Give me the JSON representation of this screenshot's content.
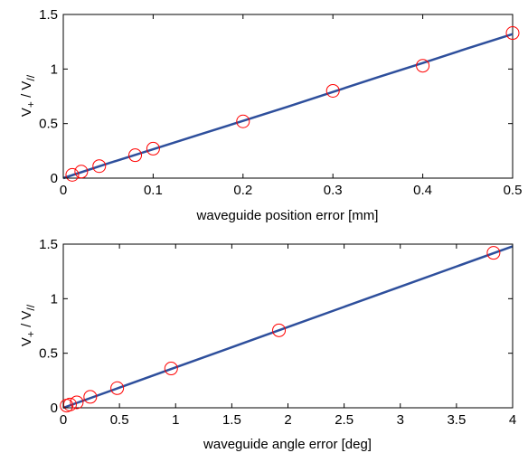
{
  "chart_data": [
    {
      "type": "line",
      "xlabel": "waveguide position error [mm]",
      "ylabel": {
        "base": "V",
        "sub1": "+",
        "sep": " / ",
        "base2": "V",
        "sub2": "//"
      },
      "xlim": [
        0,
        0.5
      ],
      "ylim": [
        0,
        1.5
      ],
      "xticks": [
        0,
        0.1,
        0.2,
        0.3,
        0.4,
        0.5
      ],
      "xtick_labels": [
        "0",
        "0.1",
        "0.2",
        "0.3",
        "0.4",
        "0.5"
      ],
      "yticks": [
        0,
        0.5,
        1,
        1.5
      ],
      "ytick_labels": [
        "0",
        "0.5",
        "1",
        "1.5"
      ],
      "grid": false,
      "series": [
        {
          "kind": "line",
          "color": "#2e4f9c",
          "x": [
            0,
            0.05,
            0.1,
            0.15,
            0.2,
            0.25,
            0.3,
            0.35,
            0.4,
            0.45,
            0.5
          ],
          "y": [
            0,
            0.135,
            0.265,
            0.395,
            0.525,
            0.655,
            0.79,
            0.925,
            1.055,
            1.19,
            1.32
          ]
        },
        {
          "kind": "scatter",
          "marker": "open-circle",
          "color": "#ff0000",
          "x": [
            0.01,
            0.02,
            0.04,
            0.08,
            0.1,
            0.2,
            0.3,
            0.4,
            0.5
          ],
          "y": [
            0.03,
            0.06,
            0.11,
            0.21,
            0.27,
            0.52,
            0.8,
            1.03,
            1.33
          ]
        }
      ]
    },
    {
      "type": "line",
      "xlabel": "waveguide angle error [deg]",
      "ylabel": {
        "base": "V",
        "sub1": "+",
        "sep": " / ",
        "base2": "V",
        "sub2": "//"
      },
      "xlim": [
        0,
        4
      ],
      "ylim": [
        0,
        1.5
      ],
      "xticks": [
        0,
        0.5,
        1,
        1.5,
        2,
        2.5,
        3,
        3.5,
        4
      ],
      "xtick_labels": [
        "0",
        "0.5",
        "1",
        "1.5",
        "2",
        "2.5",
        "3",
        "3.5",
        "4"
      ],
      "yticks": [
        0,
        0.5,
        1,
        1.5
      ],
      "ytick_labels": [
        "0",
        "0.5",
        "1",
        "1.5"
      ],
      "grid": false,
      "series": [
        {
          "kind": "line",
          "color": "#2e4f9c",
          "x": [
            0,
            0.5,
            1,
            1.5,
            2,
            2.5,
            3,
            3.5,
            4
          ],
          "y": [
            0,
            0.185,
            0.37,
            0.555,
            0.74,
            0.925,
            1.11,
            1.295,
            1.48
          ]
        },
        {
          "kind": "scatter",
          "marker": "open-circle",
          "color": "#ff0000",
          "x": [
            0.03,
            0.06,
            0.12,
            0.24,
            0.48,
            0.96,
            1.92,
            3.83
          ],
          "y": [
            0.02,
            0.03,
            0.05,
            0.1,
            0.18,
            0.36,
            0.71,
            1.42
          ]
        }
      ]
    }
  ]
}
